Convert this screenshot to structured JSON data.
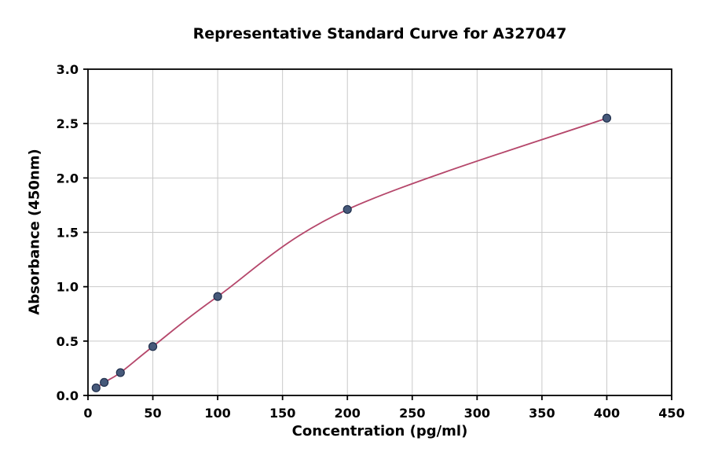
{
  "chart_data": {
    "type": "line",
    "title": "Representative Standard Curve for A327047",
    "xlabel": "Concentration (pg/ml)",
    "ylabel": "Absorbance (450nm)",
    "x": [
      6.25,
      12.5,
      25,
      50,
      100,
      200,
      400
    ],
    "y": [
      0.07,
      0.12,
      0.21,
      0.45,
      0.91,
      1.71,
      2.55
    ],
    "xlim": [
      0,
      450
    ],
    "ylim": [
      0,
      3.0
    ],
    "xticks": [
      0,
      50,
      100,
      150,
      200,
      250,
      300,
      350,
      400,
      450
    ],
    "yticks": [
      0.0,
      0.5,
      1.0,
      1.5,
      2.0,
      2.5,
      3.0
    ],
    "ytick_labels": [
      "0.0",
      "0.5",
      "1.0",
      "1.5",
      "2.0",
      "2.5",
      "3.0"
    ],
    "grid": true,
    "legend": "none",
    "marker": "circle",
    "colors": {
      "line": "#b5476b",
      "marker_fill": "#46597a",
      "marker_edge": "#20304d",
      "grid": "#c9c9c9",
      "spine": "#000000",
      "background": "#ffffff"
    }
  }
}
